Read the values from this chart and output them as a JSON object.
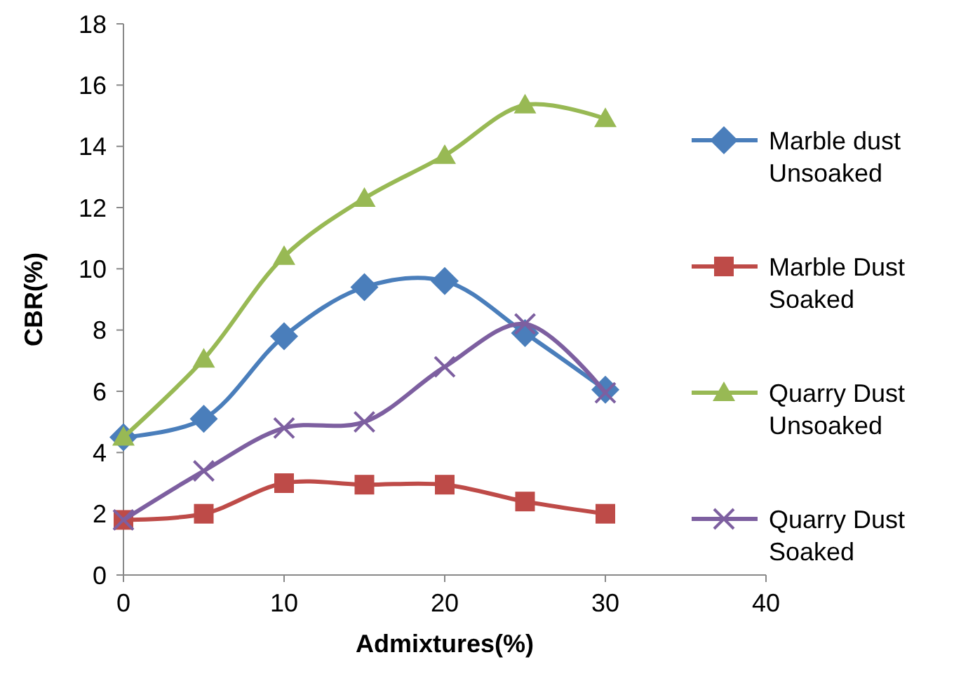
{
  "chart_data": {
    "type": "line",
    "xlabel": "Admixtures(%)",
    "ylabel": "CBR(%)",
    "x": [
      0,
      5,
      10,
      15,
      20,
      25,
      30
    ],
    "xlim": [
      0,
      40
    ],
    "xticks": [
      0,
      10,
      20,
      30,
      40
    ],
    "ylim": [
      0,
      18
    ],
    "yticks": [
      0,
      2,
      4,
      6,
      8,
      10,
      12,
      14,
      16,
      18
    ],
    "grid": false,
    "legend": "right",
    "series": [
      {
        "name": "Marble dust Unsoaked",
        "color": "#4a7ebb",
        "marker": "diamond",
        "values": [
          4.5,
          5.1,
          7.8,
          9.4,
          9.6,
          7.9,
          6.05
        ]
      },
      {
        "name": "Marble Dust Soaked",
        "color": "#be4b48",
        "marker": "square",
        "values": [
          1.8,
          2.0,
          3.0,
          2.95,
          2.95,
          2.4,
          2.0
        ]
      },
      {
        "name": "Quarry Dust Unsoaked",
        "color": "#98b954",
        "marker": "triangle",
        "values": [
          4.5,
          7.05,
          10.4,
          12.3,
          13.7,
          15.35,
          14.9
        ]
      },
      {
        "name": "Quarry Dust Soaked",
        "color": "#7d5fa0",
        "marker": "cross",
        "values": [
          1.8,
          3.4,
          4.8,
          5.0,
          6.8,
          8.2,
          5.95
        ]
      }
    ]
  }
}
